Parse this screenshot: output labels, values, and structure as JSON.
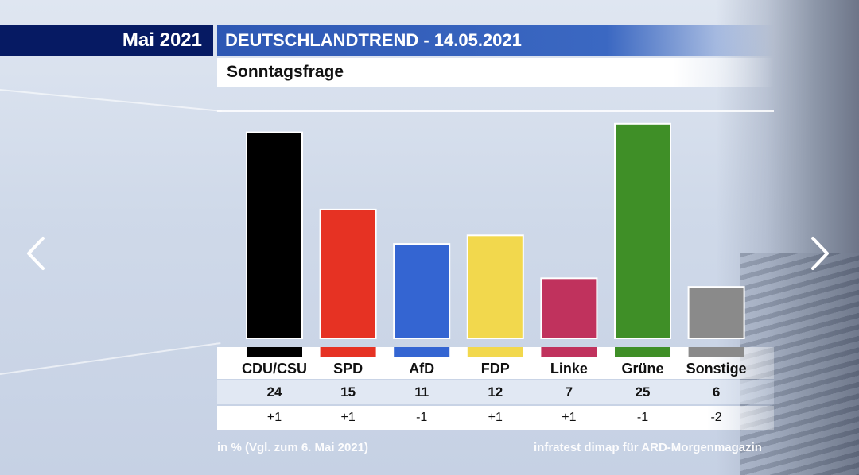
{
  "header": {
    "period": "Mai 2021",
    "title": "DEUTSCHLANDTREND - 14.05.2021",
    "subtitle": "Sonntagsfrage"
  },
  "chart_data": {
    "type": "bar",
    "title": "Sonntagsfrage",
    "categories": [
      "CDU/CSU",
      "SPD",
      "AfD",
      "FDP",
      "Linke",
      "Grüne",
      "Sonstige"
    ],
    "values": [
      24,
      15,
      11,
      12,
      7,
      25,
      6
    ],
    "changes": [
      "+1",
      "+1",
      "-1",
      "+1",
      "+1",
      "-1",
      "-2"
    ],
    "colors": [
      "#000000",
      "#e63223",
      "#3465d2",
      "#f2d84d",
      "#c0325d",
      "#3f8f27",
      "#8a8a8a"
    ],
    "ylim": [
      0,
      26
    ],
    "unit": "%"
  },
  "footer": {
    "note": "in % (Vgl. zum 6. Mai 2021)",
    "source": "infratest dimap für ARD-Morgenmagazin"
  },
  "nav": {
    "prev_icon": "chevron-left-icon",
    "next_icon": "chevron-right-icon"
  }
}
